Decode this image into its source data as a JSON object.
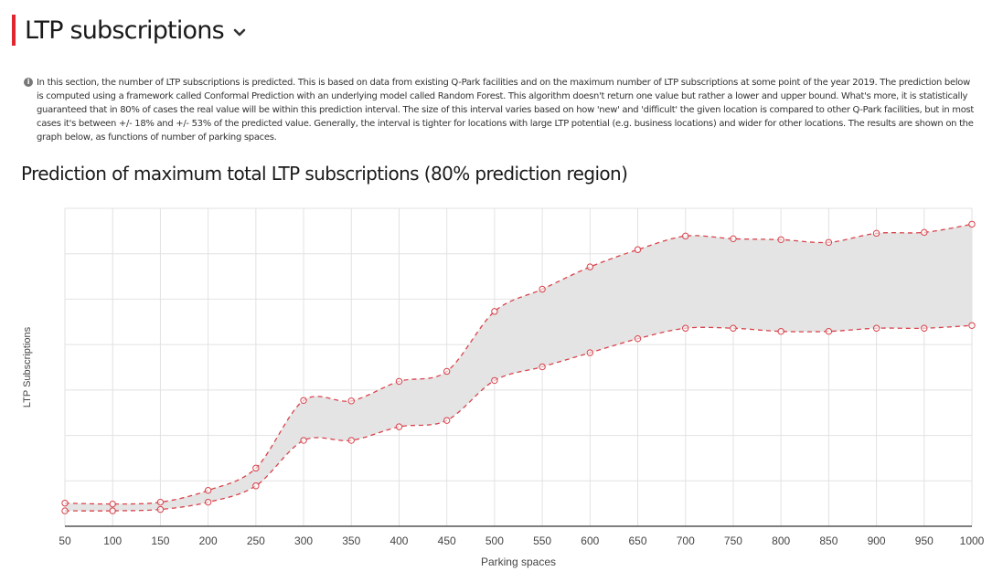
{
  "header": {
    "title": "LTP subscriptions",
    "chevron_icon": "chevron-down-icon"
  },
  "info": {
    "icon": "info-icon",
    "text": "In this section, the number of LTP subscriptions is predicted. This is based on data from existing Q-Park facilities and on the maximum number of  LTP subscriptions at some point of the year 2019. The prediction below is computed using a framework called Conformal  Prediction with an underlying model called  Random  Forest. This algorithm doesn't return one value but rather a lower and upper bound. What's more, it is statistically guaranteed that in 80% of cases the real value will be within this prediction interval. The size of this interval varies based on how 'new' and 'difficult' the given location is compared to other Q-Park facilities, but in most cases it's between +/- 18% and +/- 53% of the predicted value. Generally, the interval is tighter for locations with large  LTP potential (e.g. business locations) and wider for other locations. The results are shown on the graph below, as functions of number of parking spaces."
  },
  "chart_data": {
    "type": "area",
    "title": "Prediction of maximum total  LTP subscriptions (80% prediction region)",
    "xlabel": "Parking spaces",
    "ylabel": "LTP Subscriptions",
    "x": [
      50,
      100,
      150,
      200,
      250,
      300,
      350,
      400,
      450,
      500,
      550,
      600,
      650,
      700,
      750,
      800,
      850,
      900,
      950,
      1000
    ],
    "xlim": [
      50,
      1000
    ],
    "ylim": [
      0,
      7
    ],
    "grid": true,
    "series": [
      {
        "name": "",
        "role": "upper",
        "values": [
          0.51,
          0.49,
          0.53,
          0.79,
          1.28,
          2.77,
          2.76,
          3.19,
          3.41,
          4.73,
          5.22,
          5.71,
          6.09,
          6.39,
          6.33,
          6.31,
          6.25,
          6.45,
          6.47,
          6.65
        ]
      },
      {
        "name": "",
        "role": "lower",
        "values": [
          0.34,
          0.34,
          0.37,
          0.53,
          0.89,
          1.89,
          1.89,
          2.19,
          2.33,
          3.21,
          3.51,
          3.82,
          4.13,
          4.36,
          4.36,
          4.29,
          4.29,
          4.36,
          4.36,
          4.42
        ]
      }
    ],
    "colors": {
      "band": "#e4e4e4",
      "line": "#d9434c",
      "grid": "#e2e2e2"
    }
  }
}
